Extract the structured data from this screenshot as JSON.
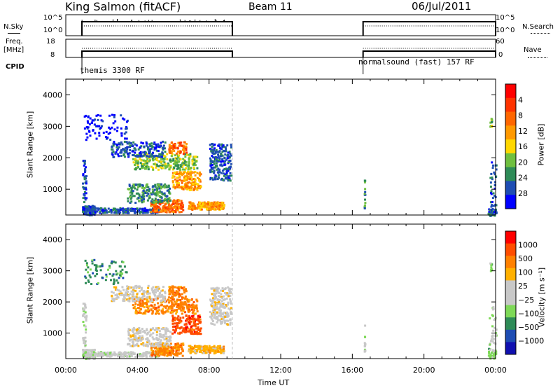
{
  "header": {
    "station": "King Salmon (fitACF)",
    "beam": "Beam 11",
    "date": "06/Jul/2011"
  },
  "labels": {
    "nsky": "N.Sky",
    "freq": "Freq.",
    "mhz": "[MHz]",
    "cpid": "CPID",
    "nsearch": "N.Search",
    "nave": "Nave",
    "nsky_ticks": [
      "10^5",
      "10^0"
    ],
    "nsearch_ticks": [
      "10^5",
      "10^0"
    ],
    "freq_ticks": [
      "18",
      "8"
    ],
    "nave_ticks": [
      "60",
      "0"
    ]
  },
  "cpid_blocks": [
    {
      "label": "themis 3300 RF"
    },
    {
      "label": "normalsound (fast) 157 RF"
    }
  ],
  "colors": {
    "power_scale": [
      "#0000ff",
      "#1e4db3",
      "#2e8b57",
      "#6fbf3f",
      "#ffd700",
      "#ff9900",
      "#ff6600",
      "#ff3300",
      "#ff0000"
    ],
    "velocity_scale": [
      "#ff0000",
      "#ff4d00",
      "#ff8000",
      "#ffb000",
      "#c8c8c8",
      "#c8c8c8",
      "#7ed957",
      "#2e8b57",
      "#1e4db3",
      "#1010b0"
    ]
  },
  "chart_data": [
    {
      "type": "heatmap",
      "title": "",
      "xlabel": "Time UT",
      "ylabel": "Slant Range [km]",
      "xlim": [
        0,
        24
      ],
      "ylim": [
        180,
        4500
      ],
      "x_ticks": [
        "00:00",
        "04:00",
        "08:00",
        "12:00",
        "16:00",
        "20:00",
        "00:00"
      ],
      "y_ticks": [
        "1000",
        "2000",
        "3000",
        "4000"
      ],
      "colorbar": {
        "label": "Power [dB]",
        "ticks": [
          "4",
          "8",
          "12",
          "16",
          "20",
          "24",
          "28"
        ],
        "range": [
          0,
          30
        ]
      },
      "data_windows_hours": [
        [
          0.9,
          9.3
        ],
        [
          16.6,
          16.7
        ],
        [
          23.4,
          24
        ]
      ]
    },
    {
      "type": "heatmap",
      "title": "",
      "xlabel": "Time UT",
      "ylabel": "Slant Range [km]",
      "xlim": [
        0,
        24
      ],
      "ylim": [
        180,
        4500
      ],
      "x_ticks": [
        "00:00",
        "04:00",
        "08:00",
        "12:00",
        "16:00",
        "20:00",
        "00:00"
      ],
      "y_ticks": [
        "1000",
        "2000",
        "3000",
        "4000"
      ],
      "colorbar": {
        "label": "Velocity [m s⁻¹]",
        "ticks": [
          "1000",
          "500",
          "100",
          "25",
          "−25",
          "−100",
          "−500",
          "−1000"
        ],
        "range": [
          -1000,
          1000
        ]
      },
      "data_windows_hours": [
        [
          0.9,
          9.3
        ],
        [
          16.6,
          16.7
        ],
        [
          23.4,
          24
        ]
      ]
    }
  ]
}
